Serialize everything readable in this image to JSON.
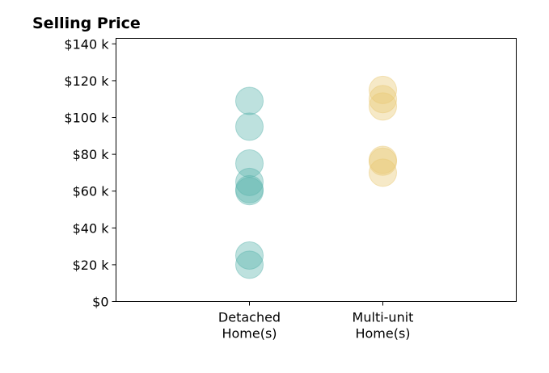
{
  "chart_data": {
    "type": "scatter",
    "title": "Selling Price",
    "xlabel": "",
    "ylabel": "",
    "categories": [
      "Detached\nHome(s)",
      "Multi-unit\nHome(s)"
    ],
    "y_tick_labels": [
      "$0",
      "$20 k",
      "$40 k",
      "$60 k",
      "$80 k",
      "$100 k",
      "$120 k",
      "$140 k"
    ],
    "y_ticks": [
      0,
      20000,
      40000,
      60000,
      80000,
      100000,
      120000,
      140000
    ],
    "ylim": [
      0,
      143000
    ],
    "xlim": [
      0,
      3
    ],
    "grid": false,
    "series": [
      {
        "category_index": 0,
        "color": "#5ab4ac",
        "values": [
          109000,
          95000,
          75000,
          65000,
          60000,
          61000,
          25000,
          20000
        ]
      },
      {
        "category_index": 1,
        "color": "#e8c872",
        "values": [
          115000,
          110000,
          106000,
          77000,
          76000,
          70000
        ]
      }
    ]
  }
}
